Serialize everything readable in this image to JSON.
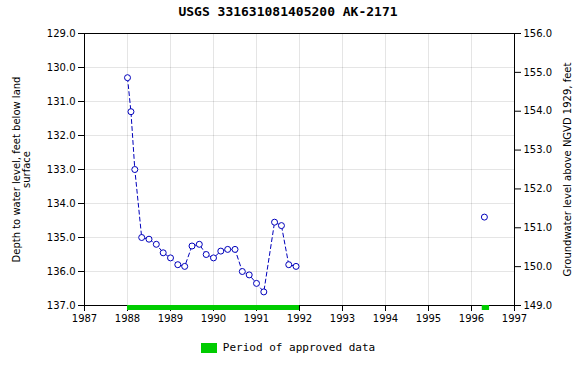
{
  "chart_data": {
    "type": "line",
    "title": "USGS 331631081405200 AK-2171",
    "ylabel": "Depth to water level, feet below land\nsurface",
    "y2label": "Groundwater level above NGVD 1929, feet",
    "x": [
      1988.0,
      1988.08,
      1988.17,
      1988.33,
      1988.5,
      1988.67,
      1988.83,
      1989.0,
      1989.17,
      1989.33,
      1989.5,
      1989.67,
      1989.83,
      1990.0,
      1990.17,
      1990.33,
      1990.5,
      1990.67,
      1990.83,
      1991.0,
      1991.17,
      1991.42,
      1991.58,
      1991.75,
      1991.92,
      null,
      1996.3
    ],
    "series": [
      {
        "color": "#0000bb",
        "marker": "circle",
        "line_style": "dashed",
        "values": [
          130.3,
          131.3,
          133.0,
          135.0,
          135.05,
          135.2,
          135.45,
          135.6,
          135.8,
          135.85,
          135.25,
          135.2,
          135.5,
          135.6,
          135.4,
          135.35,
          135.35,
          136.0,
          136.1,
          136.35,
          136.6,
          134.55,
          134.65,
          135.8,
          135.85,
          null,
          134.4
        ]
      }
    ],
    "spans": {
      "name": "Period of approved data",
      "color": "#00cc00",
      "x_start": [
        1988.0,
        1996.25
      ],
      "x_end": [
        1992.0,
        1996.42
      ]
    },
    "xlim": [
      1987,
      1997
    ],
    "xticks": [
      1987,
      1988,
      1989,
      1990,
      1991,
      1992,
      1993,
      1994,
      1995,
      1996,
      1997
    ],
    "ylim": [
      137.0,
      129.0
    ],
    "yticks": [
      {
        "value": 129,
        "label": "129.0"
      },
      {
        "value": 130,
        "label": "130.0"
      },
      {
        "value": 131,
        "label": "131.0"
      },
      {
        "value": 132,
        "label": "132.0"
      },
      {
        "value": 133,
        "label": "133.0"
      },
      {
        "value": 134,
        "label": "134.0"
      },
      {
        "value": 135,
        "label": "135.0"
      },
      {
        "value": 136,
        "label": "136.0"
      },
      {
        "value": 137,
        "label": "137.0"
      }
    ],
    "y2lim": [
      149.0,
      156.0
    ],
    "y2ticks": [
      {
        "value": 149,
        "label": "149.0"
      },
      {
        "value": 150,
        "label": "150.0"
      },
      {
        "value": 151,
        "label": "151.0"
      },
      {
        "value": 152,
        "label": "152.0"
      },
      {
        "value": 153,
        "label": "153.0"
      },
      {
        "value": 154,
        "label": "154.0"
      },
      {
        "value": 155,
        "label": "155.0"
      },
      {
        "value": 156,
        "label": "156.0"
      }
    ],
    "grid": true,
    "legend": "bottom"
  }
}
